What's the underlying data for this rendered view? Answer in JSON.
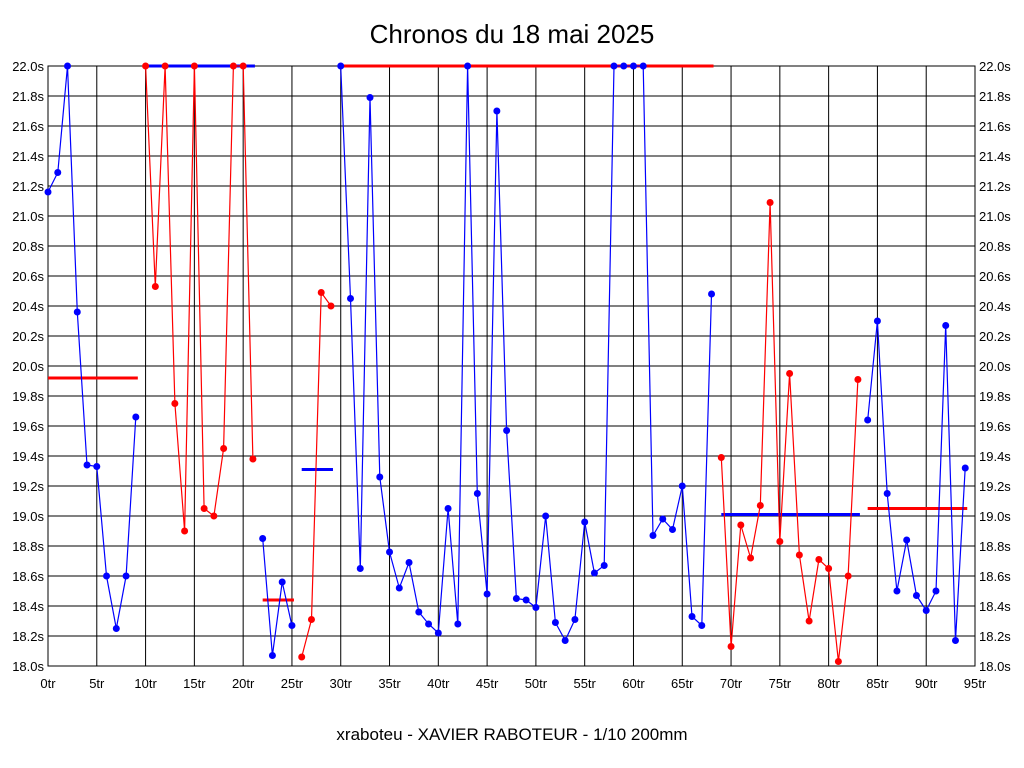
{
  "chart_data": {
    "type": "line",
    "title": "Chronos du 18 mai 2025",
    "footer": "xraboteu - XAVIER RABOTEUR - 1/10 200mm",
    "xlabel": "",
    "ylabel": "",
    "xlim": [
      0,
      95
    ],
    "ylim": [
      18.0,
      22.0
    ],
    "grid": true,
    "x_ticks": [
      "0tr",
      "5tr",
      "10tr",
      "15tr",
      "20tr",
      "25tr",
      "30tr",
      "35tr",
      "40tr",
      "45tr",
      "50tr",
      "55tr",
      "60tr",
      "65tr",
      "70tr",
      "75tr",
      "80tr",
      "85tr",
      "90tr",
      "95tr"
    ],
    "y_ticks": [
      "22.0s",
      "21.8s",
      "21.6s",
      "21.4s",
      "21.2s",
      "21.0s",
      "20.8s",
      "20.6s",
      "20.4s",
      "20.2s",
      "20.0s",
      "19.8s",
      "19.6s",
      "19.4s",
      "19.2s",
      "19.0s",
      "18.8s",
      "18.6s",
      "18.4s",
      "18.2s",
      "18.0s"
    ],
    "colors": {
      "blue": "#0000ff",
      "red": "#ff0000",
      "grid": "#000000"
    },
    "series": [
      {
        "name": "run-1",
        "color": "blue",
        "start_lap": 0,
        "values": [
          21.16,
          21.29,
          22.0,
          20.36,
          19.34,
          19.33,
          18.6,
          18.25,
          18.6,
          19.66
        ],
        "average": 19.92,
        "average_color": "red"
      },
      {
        "name": "run-2",
        "color": "red",
        "start_lap": 10,
        "values": [
          22.0,
          20.53,
          22.0,
          19.75,
          18.9,
          22.0,
          19.05,
          19.0,
          19.45,
          22.0,
          22.0,
          19.38
        ],
        "average": 22.0,
        "average_color": "blue"
      },
      {
        "name": "run-3",
        "color": "blue",
        "start_lap": 22,
        "values": [
          18.85,
          18.07,
          18.56,
          18.27
        ],
        "average": 18.44,
        "average_color": "red"
      },
      {
        "name": "run-4",
        "color": "red",
        "start_lap": 26,
        "values": [
          18.06,
          18.31,
          20.49,
          20.4
        ],
        "average": 19.31,
        "average_color": "blue"
      },
      {
        "name": "run-5",
        "color": "blue",
        "start_lap": 30,
        "values": [
          22.0,
          20.45,
          18.65,
          21.79,
          19.26,
          18.76,
          18.52,
          18.69,
          18.36,
          18.28,
          18.22,
          19.05,
          18.28,
          22.0,
          19.15,
          18.48,
          21.7,
          19.57,
          18.45,
          18.44,
          18.39,
          19.0,
          18.29,
          18.17,
          18.31,
          18.96,
          18.62,
          18.67,
          22.0,
          22.0,
          22.0,
          22.0,
          18.87,
          18.98,
          18.91,
          19.2,
          18.33,
          18.27,
          20.48
        ],
        "average": 22.0,
        "average_color": "red"
      },
      {
        "name": "run-6",
        "color": "red",
        "start_lap": 69,
        "values": [
          19.39,
          18.13,
          18.94,
          18.72,
          19.07,
          21.09,
          18.83,
          19.95,
          18.74,
          18.3,
          18.71,
          18.65,
          18.03,
          18.6,
          19.91
        ],
        "average": 19.01,
        "average_color": "blue"
      },
      {
        "name": "run-7",
        "color": "blue",
        "start_lap": 84,
        "values": [
          19.64,
          20.3,
          19.15,
          18.5,
          18.84,
          18.47,
          18.37,
          18.5,
          20.27,
          18.17,
          19.32
        ],
        "average": 19.05,
        "average_color": "red"
      }
    ]
  }
}
